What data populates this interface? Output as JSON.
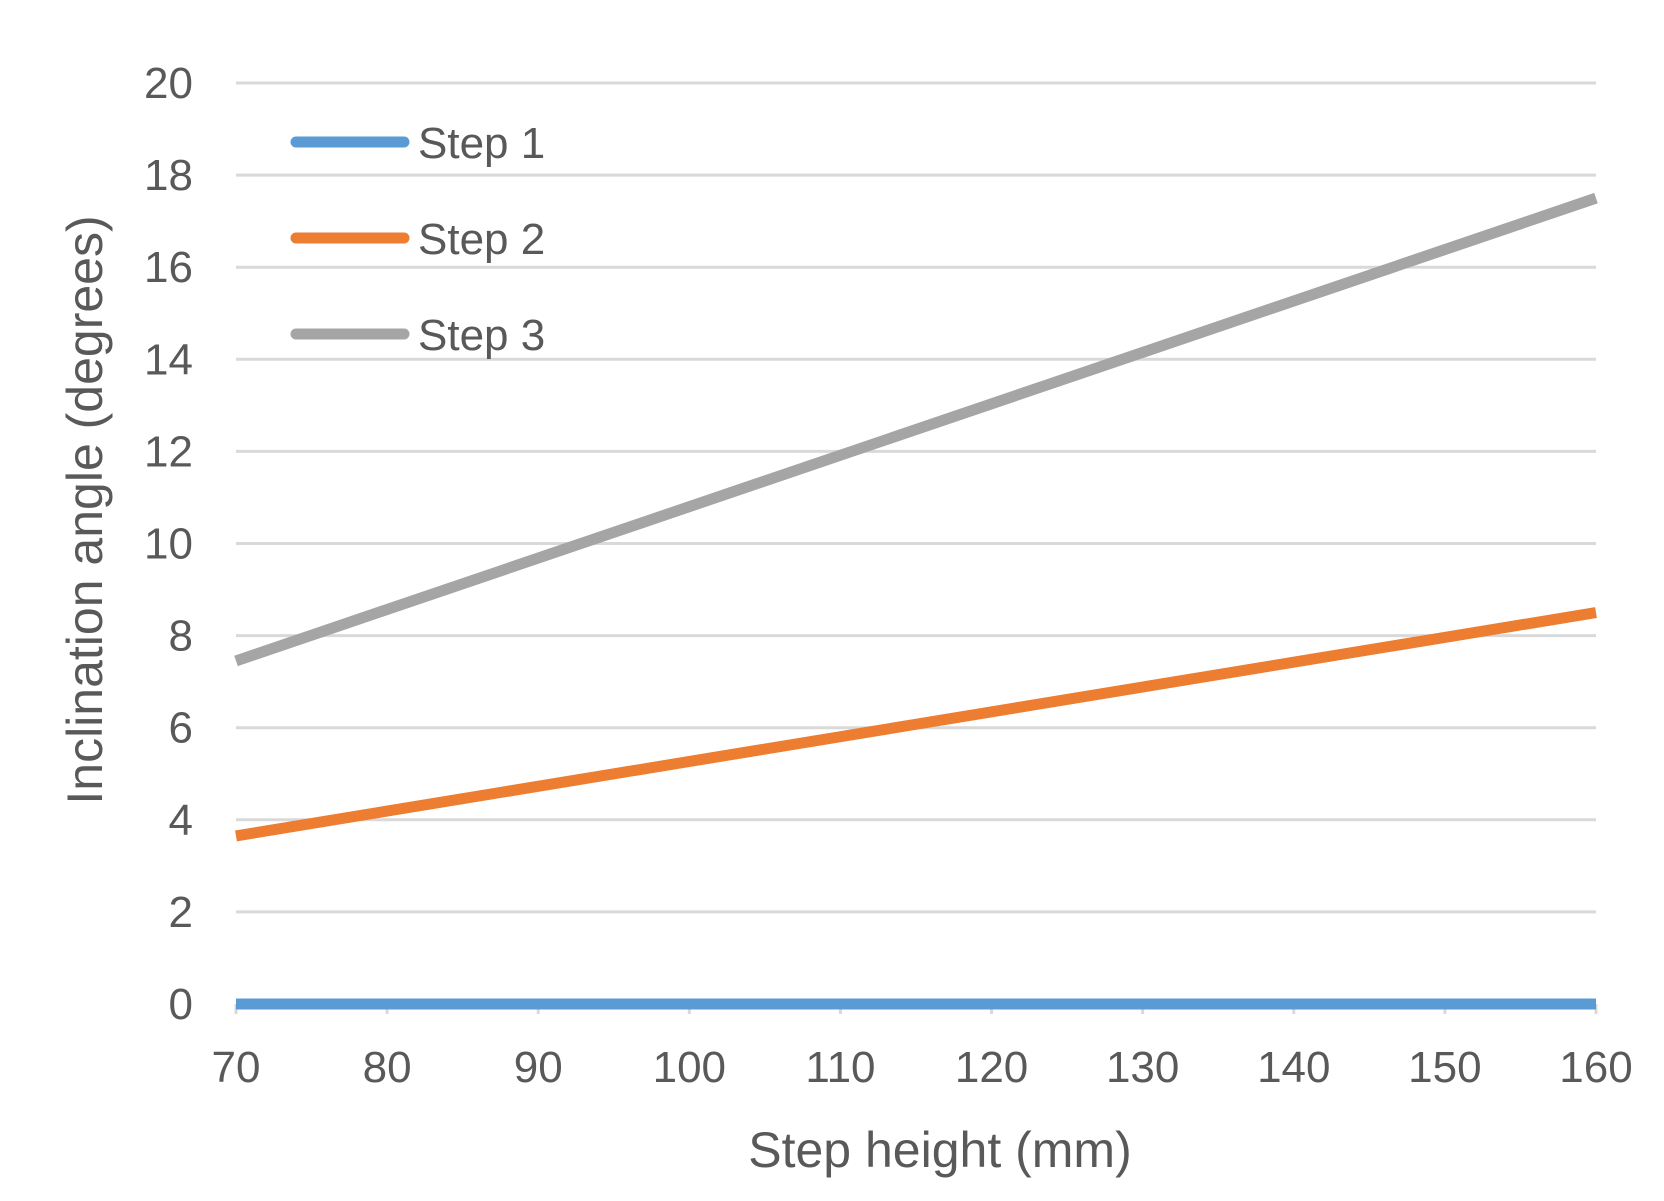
{
  "chart_data": {
    "type": "line",
    "title": "",
    "xlabel": "Step height (mm)",
    "ylabel": "Inclination angle (degrees)",
    "xlim": [
      70,
      160
    ],
    "ylim": [
      0,
      20
    ],
    "xticks": [
      "70",
      "80",
      "90",
      "100",
      "110",
      "120",
      "130",
      "140",
      "150",
      "160"
    ],
    "yticks": [
      "0",
      "2",
      "4",
      "6",
      "8",
      "10",
      "12",
      "14",
      "16",
      "18",
      "20"
    ],
    "grid": "horizontal",
    "legend_position": "top-left",
    "series": [
      {
        "name": "Step 1",
        "color": "#5B9BD5",
        "x": [
          70,
          160
        ],
        "y": [
          0,
          0
        ]
      },
      {
        "name": "Step 2",
        "color": "#ED7D31",
        "x": [
          70,
          160
        ],
        "y": [
          3.65,
          8.5
        ]
      },
      {
        "name": "Step 3",
        "color": "#A5A5A5",
        "x": [
          70,
          160
        ],
        "y": [
          7.45,
          17.5
        ]
      }
    ]
  }
}
